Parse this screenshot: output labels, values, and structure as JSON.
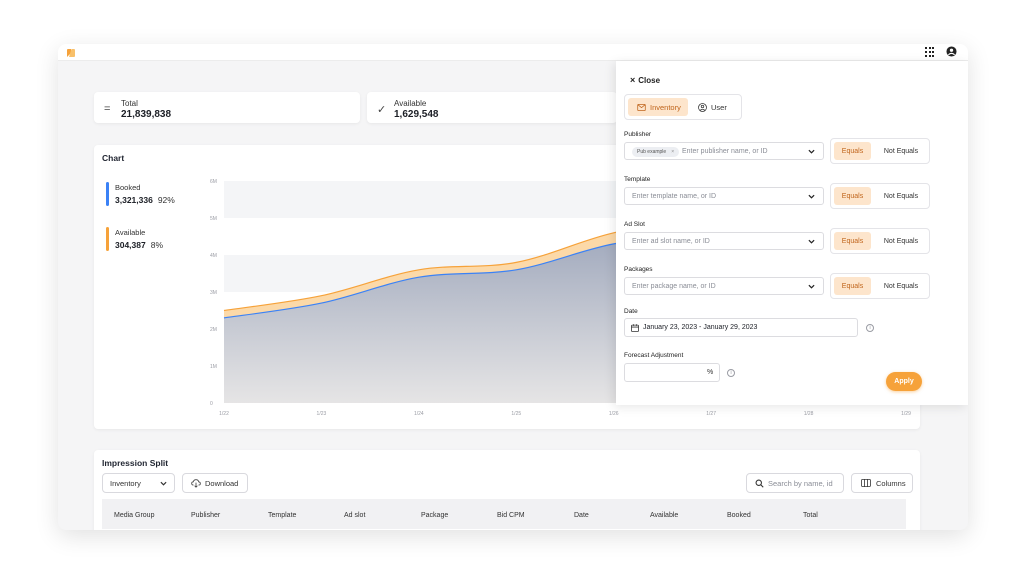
{
  "colors": {
    "accent": "#f6a23a",
    "booked": "#3b82f6",
    "available": "#f6a23a",
    "area_fill": "#b8c0d0"
  },
  "header": {
    "logo_icon": "brand-logo-icon",
    "apps_icon": "grid-icon",
    "user_icon": "user-circle-icon"
  },
  "stats": [
    {
      "icon": "equals-icon",
      "label": "Total",
      "value": "21,839,838"
    },
    {
      "icon": "check-icon",
      "label": "Available",
      "value": "1,629,548"
    }
  ],
  "chart": {
    "title": "Chart",
    "legend": [
      {
        "label": "Booked",
        "value": "3,321,336",
        "percent": "92%"
      },
      {
        "label": "Available",
        "value": "304,387",
        "percent": "8%"
      }
    ]
  },
  "chart_data": {
    "type": "area",
    "title": "Chart",
    "x": [
      "1/22",
      "1/23",
      "1/24",
      "1/25",
      "1/26",
      "1/27",
      "1/28",
      "1/29"
    ],
    "y_ticks": [
      "0",
      "1M",
      "2M",
      "3M",
      "4M",
      "5M",
      "6M"
    ],
    "ylim": [
      0,
      6000000
    ],
    "stacked": true,
    "series": [
      {
        "name": "Booked",
        "values": [
          2300000,
          2700000,
          3400000,
          3600000,
          4300000,
          4600000,
          3600000,
          3200000
        ]
      },
      {
        "name": "Available",
        "values": [
          200000,
          200000,
          200000,
          200000,
          300000,
          400000,
          300000,
          300000
        ]
      }
    ],
    "grid": true
  },
  "impression": {
    "title": "Impression Split",
    "group_select": "Inventory",
    "download_label": "Download",
    "search_placeholder": "Search by name, id",
    "columns_label": "Columns",
    "columns": [
      "Media Group",
      "Publisher",
      "Template",
      "Ad slot",
      "Package",
      "Bid CPM",
      "Date",
      "Available",
      "Booked",
      "Total"
    ]
  },
  "panel": {
    "close_label": "Close",
    "tabs": [
      {
        "label": "Inventory",
        "icon": "mail-icon"
      },
      {
        "label": "User",
        "icon": "user-icon"
      }
    ],
    "filters": [
      {
        "label": "Publisher",
        "chip": "Pub example",
        "placeholder": "Enter publisher name, or ID"
      },
      {
        "label": "Template",
        "placeholder": "Enter template name, or ID"
      },
      {
        "label": "Ad Slot",
        "placeholder": "Enter ad slot name, or ID"
      },
      {
        "label": "Packages",
        "placeholder": "Enter package name, or ID"
      }
    ],
    "equals_label": "Equals",
    "not_equals_label": "Not Equals",
    "date_label": "Date",
    "date_value": "January 23, 2023 - January 29, 2023",
    "forecast_label": "Forecast Adjustment",
    "forecast_unit": "%",
    "apply_label": "Apply"
  }
}
